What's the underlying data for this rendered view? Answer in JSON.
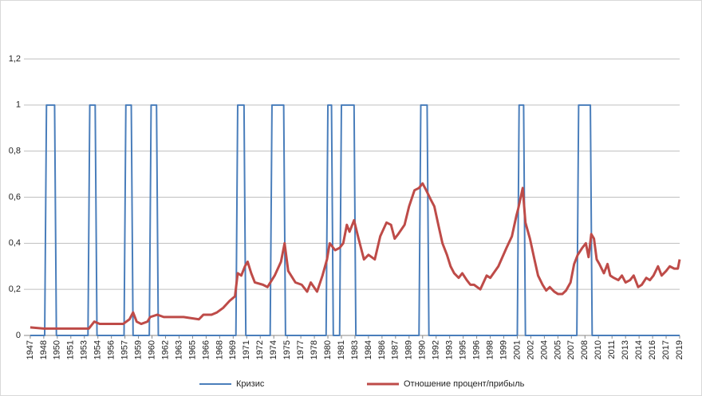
{
  "chart_data": {
    "type": "line",
    "xlim": [
      1946.3,
      2019
    ],
    "xticks": [
      1947,
      {
        "value": 1948.5,
        "label": "1948"
      },
      1950,
      {
        "value": 1951.5,
        "label": "1951"
      },
      1953,
      {
        "value": 1954.5,
        "label": "1954"
      },
      1956,
      {
        "value": 1957.5,
        "label": "1957"
      },
      1959,
      {
        "value": 1960.5,
        "label": "1960"
      },
      1962,
      {
        "value": 1963.5,
        "label": "1963"
      },
      1965,
      {
        "value": 1966.5,
        "label": "1966"
      },
      1968,
      {
        "value": 1969.5,
        "label": "1969"
      },
      1971,
      {
        "value": 1972.5,
        "label": "1972"
      },
      1974,
      {
        "value": 1975.5,
        "label": "1975"
      },
      1977,
      {
        "value": 1978.5,
        "label": "1978"
      },
      1980,
      {
        "value": 1981.5,
        "label": "1981"
      },
      1983,
      {
        "value": 1984.5,
        "label": "1984"
      },
      1986,
      {
        "value": 1987.5,
        "label": "1987"
      },
      1989,
      {
        "value": 1990.5,
        "label": "1990"
      },
      1992,
      {
        "value": 1993.5,
        "label": "1993"
      },
      1995,
      {
        "value": 1996.5,
        "label": "1996"
      },
      1998,
      {
        "value": 1999.5,
        "label": "1999"
      },
      2001,
      {
        "value": 2002.5,
        "label": "2002"
      },
      2004,
      {
        "value": 2005.5,
        "label": "2005"
      },
      2007,
      {
        "value": 2008.5,
        "label": "2008"
      },
      2010,
      {
        "value": 2011.5,
        "label": "2011"
      },
      2013,
      {
        "value": 2014.5,
        "label": "2014"
      },
      2016,
      {
        "value": 2017.5,
        "label": "2017"
      },
      2019
    ],
    "ylim": [
      0,
      1.2
    ],
    "yticks": [
      0,
      {
        "value": 0.2,
        "label": "0,2"
      },
      {
        "value": 0.4,
        "label": "0,4"
      },
      {
        "value": 0.6,
        "label": "0,6"
      },
      {
        "value": 0.8,
        "label": "0,8"
      },
      1,
      {
        "value": 1.2,
        "label": "1,2"
      }
    ],
    "grid": true,
    "legend": "bottom",
    "series": [
      {
        "name": "Кризис",
        "color": "#4a7ebb",
        "x": [
          1947,
          1948.6,
          1948.8,
          1949.7,
          1949.9,
          1953.4,
          1953.6,
          1954.2,
          1954.4,
          1957.4,
          1957.6,
          1958.2,
          1958.4,
          1960.2,
          1960.4,
          1961.0,
          1961.2,
          1969.8,
          1970.0,
          1970.7,
          1970.9,
          1973.6,
          1973.8,
          1975.1,
          1975.3,
          1979.8,
          1980.0,
          1980.4,
          1980.6,
          1981.3,
          1981.5,
          1982.9,
          1983.1,
          1990.1,
          1990.3,
          1991.0,
          1991.2,
          2001.0,
          2001.2,
          2001.7,
          2001.9,
          2007.6,
          2007.8,
          2009.1,
          2009.3,
          2019
        ],
        "values": [
          0,
          0,
          1,
          1,
          0,
          0,
          1,
          1,
          0,
          0,
          1,
          1,
          0,
          0,
          1,
          1,
          0,
          0,
          1,
          1,
          0,
          0,
          1,
          1,
          0,
          0,
          1,
          1,
          0,
          0,
          1,
          1,
          0,
          0,
          1,
          1,
          0,
          0,
          1,
          1,
          0,
          0,
          1,
          1,
          0,
          0
        ]
      },
      {
        "name": "Отношение процент/прибыль",
        "color": "#be4b48",
        "x": [
          1947.0,
          1948.5,
          1950.3,
          1952.5,
          1953.5,
          1954.1,
          1954.7,
          1956.0,
          1957.3,
          1958.0,
          1958.4,
          1958.8,
          1959.3,
          1960.0,
          1960.3,
          1961.1,
          1961.8,
          1964.0,
          1965.7,
          1966.2,
          1967.1,
          1967.7,
          1968.4,
          1969.1,
          1969.7,
          1970.0,
          1970.4,
          1970.8,
          1971.1,
          1971.5,
          1971.9,
          1972.8,
          1973.3,
          1974.1,
          1974.8,
          1975.2,
          1975.6,
          1976.4,
          1977.1,
          1977.7,
          1978.1,
          1978.8,
          1979.4,
          1979.9,
          1980.2,
          1980.8,
          1981.3,
          1981.7,
          1982.1,
          1982.4,
          1982.9,
          1983.4,
          1984.0,
          1984.5,
          1985.2,
          1985.8,
          1986.5,
          1987.0,
          1987.4,
          1987.8,
          1988.5,
          1989.0,
          1989.6,
          1990.1,
          1990.5,
          1990.9,
          1991.4,
          1991.8,
          1992.3,
          1992.7,
          1993.2,
          1993.6,
          1994.0,
          1994.5,
          1994.9,
          1995.4,
          1995.8,
          1996.2,
          1996.9,
          1997.6,
          1998.0,
          1998.9,
          1999.8,
          2000.4,
          2000.9,
          2001.1,
          2001.6,
          2001.9,
          2002.4,
          2002.9,
          2003.3,
          2003.8,
          2004.2,
          2004.6,
          2005.1,
          2005.5,
          2006.0,
          2006.4,
          2006.9,
          2007.3,
          2007.7,
          2008.2,
          2008.6,
          2008.9,
          2009.2,
          2009.5,
          2009.8,
          2010.1,
          2010.6,
          2011.0,
          2011.3,
          2011.7,
          2012.2,
          2012.6,
          2013.0,
          2013.5,
          2013.9,
          2014.4,
          2014.8,
          2015.3,
          2015.7,
          2016.1,
          2016.6,
          2017.0,
          2017.5,
          2017.9,
          2018.4,
          2018.8,
          2019.0
        ],
        "values": [
          0.035,
          0.03,
          0.03,
          0.03,
          0.03,
          0.06,
          0.05,
          0.05,
          0.05,
          0.07,
          0.1,
          0.06,
          0.05,
          0.06,
          0.08,
          0.09,
          0.08,
          0.08,
          0.07,
          0.09,
          0.09,
          0.1,
          0.12,
          0.15,
          0.17,
          0.27,
          0.26,
          0.3,
          0.32,
          0.27,
          0.23,
          0.22,
          0.21,
          0.26,
          0.32,
          0.4,
          0.28,
          0.23,
          0.22,
          0.19,
          0.23,
          0.19,
          0.26,
          0.33,
          0.4,
          0.37,
          0.38,
          0.4,
          0.48,
          0.45,
          0.5,
          0.42,
          0.33,
          0.35,
          0.33,
          0.43,
          0.49,
          0.48,
          0.42,
          0.44,
          0.48,
          0.56,
          0.63,
          0.64,
          0.66,
          0.63,
          0.59,
          0.56,
          0.47,
          0.4,
          0.35,
          0.3,
          0.27,
          0.25,
          0.27,
          0.24,
          0.22,
          0.22,
          0.2,
          0.26,
          0.25,
          0.3,
          0.38,
          0.43,
          0.52,
          0.55,
          0.64,
          0.49,
          0.42,
          0.33,
          0.26,
          0.22,
          0.195,
          0.21,
          0.19,
          0.18,
          0.18,
          0.195,
          0.23,
          0.31,
          0.35,
          0.38,
          0.4,
          0.34,
          0.44,
          0.42,
          0.33,
          0.31,
          0.27,
          0.31,
          0.26,
          0.25,
          0.24,
          0.26,
          0.23,
          0.24,
          0.26,
          0.21,
          0.22,
          0.25,
          0.24,
          0.26,
          0.3,
          0.26,
          0.28,
          0.3,
          0.29,
          0.29,
          0.33
        ]
      }
    ]
  }
}
